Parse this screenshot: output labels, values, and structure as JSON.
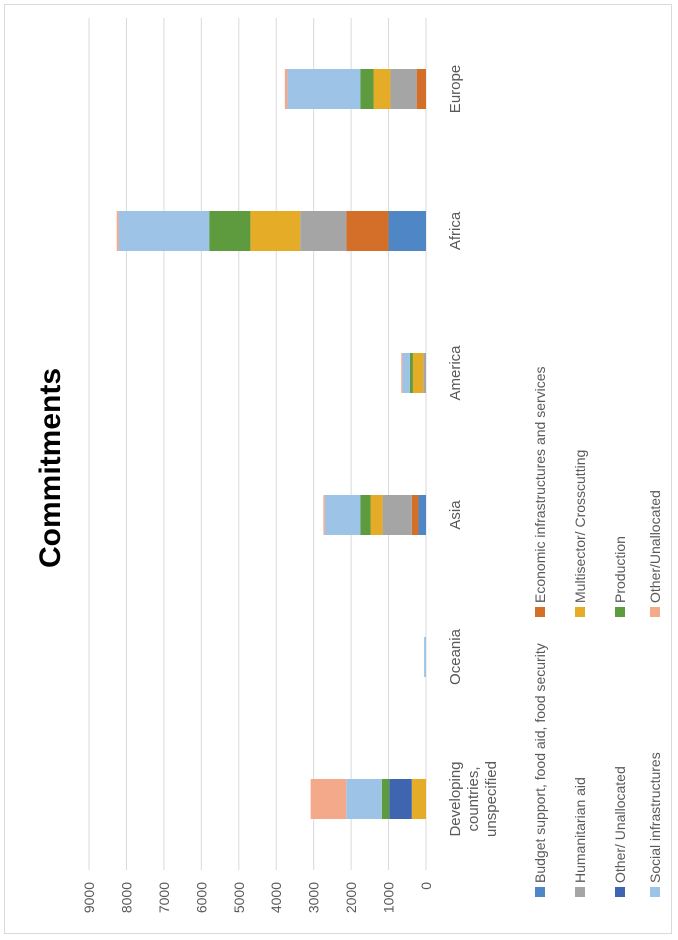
{
  "chart_data": {
    "type": "bar",
    "orientation": "stacked-vertical, rotated 90deg",
    "title": "Commitments",
    "categories": [
      "Europe",
      "Africa",
      "America",
      "Asia",
      "Oceania",
      "Developing countries, unspecified"
    ],
    "ylim": [
      0,
      9000
    ],
    "yticks": [
      0,
      1000,
      2000,
      3000,
      4000,
      5000,
      6000,
      7000,
      8000,
      9000
    ],
    "grid": true,
    "legend_position": "right",
    "series": [
      {
        "name": "Budget support, food aid, food security",
        "color": "#4f86c6",
        "values": [
          0,
          1000,
          0,
          200,
          0,
          0
        ]
      },
      {
        "name": "Economic infrastructures and services",
        "color": "#d46f2a",
        "values": [
          250,
          1130,
          0,
          180,
          0,
          0
        ]
      },
      {
        "name": "Humanitarian aid",
        "color": "#a5a5a5",
        "values": [
          700,
          1230,
          70,
          780,
          0,
          0
        ]
      },
      {
        "name": "Multisector/ Crosscutting",
        "color": "#e5ac28",
        "values": [
          450,
          1330,
          280,
          320,
          0,
          380
        ]
      },
      {
        "name": "Other/ Unallocated",
        "color": "#3d65b0",
        "values": [
          0,
          0,
          0,
          0,
          0,
          600
        ]
      },
      {
        "name": "Production",
        "color": "#5e9a3e",
        "values": [
          350,
          1100,
          80,
          270,
          0,
          200
        ]
      },
      {
        "name": "Social infrastructures",
        "color": "#9dc3e6",
        "values": [
          1950,
          2420,
          200,
          950,
          50,
          950
        ]
      },
      {
        "name": "Other/Unallocated",
        "color": "#f4a98a",
        "values": [
          70,
          50,
          30,
          40,
          0,
          950
        ]
      }
    ]
  }
}
